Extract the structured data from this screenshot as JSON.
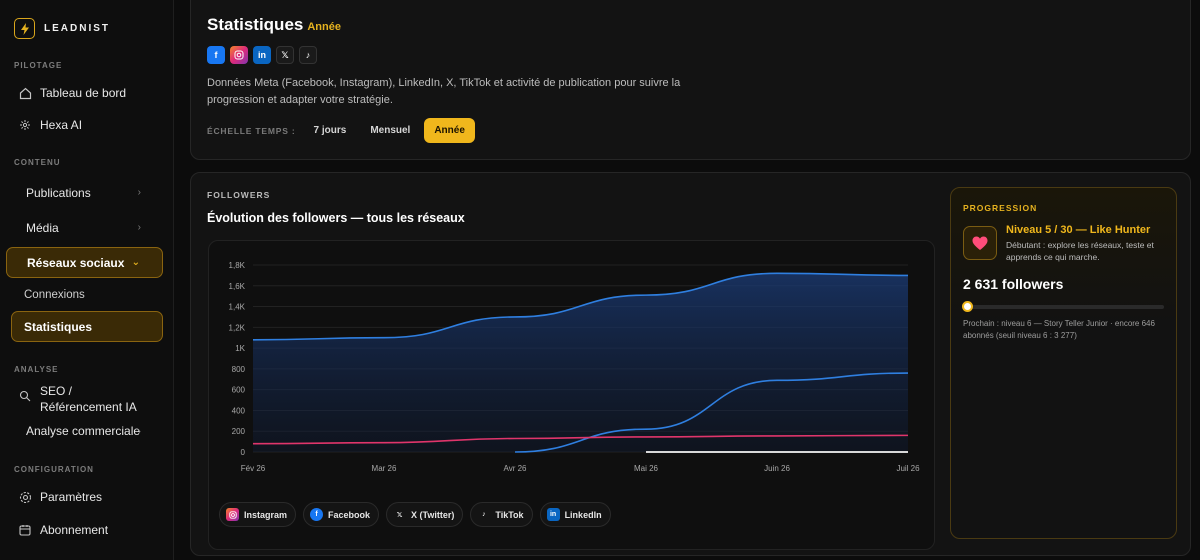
{
  "brand": {
    "name": "LEADNIST"
  },
  "sidebar": {
    "sections": {
      "pilotage": "PILOTAGE",
      "contenu": "CONTENU",
      "analyse": "ANALYSE",
      "configuration": "CONFIGURATION"
    },
    "items": {
      "tableau": "Tableau de bord",
      "hexa": "Hexa AI",
      "publications": "Publications",
      "media": "Média",
      "reseaux": "Réseaux sociaux",
      "connexions": "Connexions",
      "statistiques": "Statistiques",
      "seo": "SEO / Référencement IA",
      "analyse_commerciale": "Analyse commerciale",
      "parametres": "Paramètres",
      "abonnement": "Abonnement"
    }
  },
  "header": {
    "title": "Statistiques",
    "period": "Année",
    "description": "Données Meta (Facebook, Instagram), LinkedIn, X, TikTok et activité de publication pour suivre la progression et adapter votre stratégie.",
    "timescale_label": "ÉCHELLE TEMPS :",
    "timescale_options": [
      "7 jours",
      "Mensuel",
      "Année"
    ],
    "timescale_selected": "Année"
  },
  "colors": {
    "accent": "#f0b71c",
    "facebook": "#1877f2",
    "instagram_line": "#e0356b",
    "x_line": "#d8d8d8"
  },
  "followers_card": {
    "eyebrow": "FOLLOWERS",
    "title": "Évolution des followers — tous les réseaux"
  },
  "chart_data": {
    "type": "line",
    "x": [
      "Fév 26",
      "Mar 26",
      "Avr 26",
      "Mai 26",
      "Juin 26",
      "Juil 26"
    ],
    "y_ticks": [
      "0",
      "200",
      "400",
      "600",
      "800",
      "1K",
      "1,2K",
      "1,4K",
      "1,6K",
      "1,8K"
    ],
    "ylim": [
      0,
      1800
    ],
    "grid": true,
    "legend_position": "bottom",
    "series": [
      {
        "name": "Facebook",
        "color": "#2f7fe0",
        "values": [
          1080,
          1100,
          1300,
          1510,
          1720,
          1700
        ],
        "area": true
      },
      {
        "name": "LinkedIn",
        "color": "#2f7fe0",
        "values": [
          null,
          null,
          0,
          220,
          690,
          760
        ]
      },
      {
        "name": "Instagram",
        "color": "#e0356b",
        "values": [
          80,
          90,
          130,
          145,
          155,
          160
        ]
      },
      {
        "name": "X (Twitter)",
        "color": "#d8d8d8",
        "values": [
          null,
          null,
          null,
          0,
          0,
          0
        ]
      }
    ]
  },
  "legend": [
    {
      "label": "Instagram",
      "icon": "instagram-icon"
    },
    {
      "label": "Facebook",
      "icon": "facebook-icon"
    },
    {
      "label": "X (Twitter)",
      "icon": "x-icon"
    },
    {
      "label": "TikTok",
      "icon": "tiktok-icon"
    },
    {
      "label": "LinkedIn",
      "icon": "linkedin-icon"
    }
  ],
  "progression": {
    "eyebrow": "PROGRESSION",
    "level": "Niveau 5 / 30 — Like Hunter",
    "level_desc": "Débutant : explore les réseaux, teste et apprends ce qui marche.",
    "followers": "2 631 followers",
    "progress_fraction": 0.02,
    "next": "Prochain : niveau 6 — Story Teller Junior · encore 646 abonnés (seuil niveau 6 : 3 277)"
  }
}
